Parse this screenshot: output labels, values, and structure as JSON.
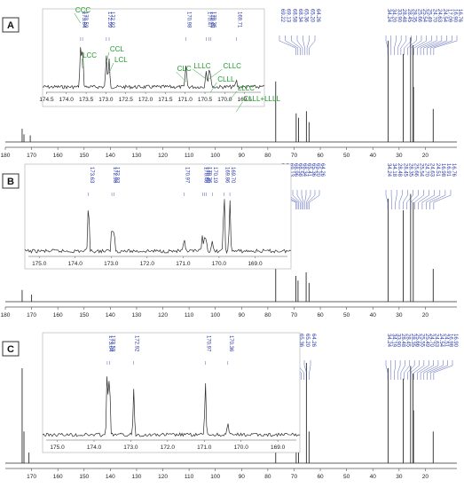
{
  "chart_data": [
    {
      "type": "line",
      "panel_label": "A",
      "xlim": [
        180,
        10
      ],
      "x_ticks": [
        180,
        170,
        160,
        150,
        140,
        130,
        120,
        110,
        100,
        90,
        80,
        70,
        60,
        50,
        40,
        30,
        20
      ],
      "peaks": [
        {
          "ppm": 173.6,
          "height": 0.12
        },
        {
          "ppm": 172.9,
          "height": 0.07
        },
        {
          "ppm": 170.5,
          "height": 0.06
        },
        {
          "ppm": 77.0,
          "height": 0.55
        },
        {
          "ppm": 69.2,
          "height": 0.26
        },
        {
          "ppm": 68.3,
          "height": 0.22
        },
        {
          "ppm": 65.3,
          "height": 0.28
        },
        {
          "ppm": 64.3,
          "height": 0.18
        },
        {
          "ppm": 34.2,
          "height": 0.92
        },
        {
          "ppm": 28.4,
          "height": 0.8
        },
        {
          "ppm": 25.6,
          "height": 0.95
        },
        {
          "ppm": 24.7,
          "height": 0.88
        },
        {
          "ppm": 24.5,
          "height": 0.5
        },
        {
          "ppm": 17.0,
          "height": 0.3
        }
      ],
      "labels_left": [
        "69.22",
        "69.13",
        "68.58",
        "68.34",
        "65.36",
        "65.20",
        "64.26"
      ],
      "labels_right": [
        "34.24",
        "34.20",
        "33.90",
        "28.48",
        "28.45",
        "28.35",
        "25.66",
        "25.54",
        "25.49",
        "24.70",
        "24.63",
        "24.54",
        "17.09",
        "16.90",
        "16.76"
      ],
      "inset": {
        "xlim": [
          174.6,
          169.0
        ],
        "x_ticks": [
          174.5,
          174.0,
          173.5,
          173.0,
          172.5,
          172.0,
          171.5,
          171.0,
          170.5,
          170.0,
          169.5
        ],
        "peaks": [
          {
            "ppm": 173.64,
            "height": 0.72
          },
          {
            "ppm": 173.59,
            "height": 0.68
          },
          {
            "ppm": 172.99,
            "height": 0.55
          },
          {
            "ppm": 172.92,
            "height": 0.5
          },
          {
            "ppm": 170.98,
            "height": 0.4
          },
          {
            "ppm": 170.47,
            "height": 0.32
          },
          {
            "ppm": 170.4,
            "height": 0.28
          },
          {
            "ppm": 170.36,
            "height": 0.22
          },
          {
            "ppm": 169.71,
            "height": 0.12
          }
        ],
        "peak_labels": [
          "173.64",
          "173.59",
          "172.99",
          "172.92",
          "170.98",
          "170.47",
          "170.40",
          "170.36",
          "169.71"
        ],
        "annotations": [
          "CCC",
          "LCC",
          "CCL",
          "LCL",
          "CLC",
          "LLLC",
          "CLLC",
          "CLLL",
          "LLLC",
          "CLLL+LLLL"
        ]
      }
    },
    {
      "type": "line",
      "panel_label": "B",
      "xlim": [
        180,
        10
      ],
      "x_ticks": [
        180,
        170,
        160,
        150,
        140,
        130,
        120,
        110,
        100,
        90,
        80,
        70,
        60,
        50,
        40,
        30,
        20
      ],
      "peaks": [
        {
          "ppm": 173.6,
          "height": 0.1
        },
        {
          "ppm": 170.0,
          "height": 0.06
        },
        {
          "ppm": 77.0,
          "height": 0.55
        },
        {
          "ppm": 69.3,
          "height": 0.22
        },
        {
          "ppm": 68.5,
          "height": 0.18
        },
        {
          "ppm": 65.4,
          "height": 0.25
        },
        {
          "ppm": 64.3,
          "height": 0.16
        },
        {
          "ppm": 34.2,
          "height": 0.88
        },
        {
          "ppm": 28.4,
          "height": 0.78
        },
        {
          "ppm": 25.6,
          "height": 0.92
        },
        {
          "ppm": 24.6,
          "height": 0.85
        },
        {
          "ppm": 17.0,
          "height": 0.28
        }
      ],
      "labels_left": [
        "69.40",
        "69.22",
        "69.13",
        "68.96",
        "68.58",
        "68.34",
        "65.41",
        "65.36",
        "65.20",
        "64.26"
      ],
      "labels_right": [
        "34.24",
        "34.18",
        "28.48",
        "28.45",
        "28.35",
        "25.66",
        "25.54",
        "24.70",
        "24.63",
        "24.51",
        "16.98",
        "16.91",
        "16.76"
      ],
      "inset": {
        "xlim": [
          175.4,
          168.0
        ],
        "x_ticks": [
          175.0,
          174.0,
          173.0,
          172.0,
          171.0,
          170.0,
          169.0
        ],
        "peaks": [
          {
            "ppm": 173.63,
            "height": 0.85
          },
          {
            "ppm": 172.98,
            "height": 0.42
          },
          {
            "ppm": 172.92,
            "height": 0.38
          },
          {
            "ppm": 170.97,
            "height": 0.18
          },
          {
            "ppm": 170.46,
            "height": 0.24
          },
          {
            "ppm": 170.4,
            "height": 0.2
          },
          {
            "ppm": 170.36,
            "height": 0.22
          },
          {
            "ppm": 170.19,
            "height": 0.15
          },
          {
            "ppm": 169.86,
            "height": 0.95
          },
          {
            "ppm": 169.7,
            "height": 0.8
          }
        ],
        "peak_labels": [
          "173.63",
          "172.98",
          "172.92",
          "170.97",
          "170.46",
          "170.40",
          "170.36",
          "170.19",
          "169.86",
          "169.70"
        ]
      }
    },
    {
      "type": "line",
      "panel_label": "C",
      "xlim": [
        180,
        10
      ],
      "x_ticks": [
        170,
        160,
        150,
        140,
        130,
        120,
        110,
        100,
        90,
        80,
        70,
        60,
        50,
        40,
        30,
        20
      ],
      "peaks": [
        {
          "ppm": 173.6,
          "height": 0.9
        },
        {
          "ppm": 172.9,
          "height": 0.3
        },
        {
          "ppm": 171.0,
          "height": 0.1
        },
        {
          "ppm": 77.0,
          "height": 0.55
        },
        {
          "ppm": 69.2,
          "height": 0.22
        },
        {
          "ppm": 68.3,
          "height": 0.18
        },
        {
          "ppm": 65.3,
          "height": 0.95
        },
        {
          "ppm": 64.3,
          "height": 0.3
        },
        {
          "ppm": 34.2,
          "height": 0.9
        },
        {
          "ppm": 28.4,
          "height": 0.8
        },
        {
          "ppm": 25.6,
          "height": 0.92
        },
        {
          "ppm": 24.7,
          "height": 0.85
        },
        {
          "ppm": 24.5,
          "height": 0.5
        },
        {
          "ppm": 17.0,
          "height": 0.3
        }
      ],
      "labels_left": [
        "69.22",
        "68.96",
        "68.34",
        "65.36",
        "65.20",
        "64.26"
      ],
      "labels_right": [
        "34.24",
        "34.19",
        "33.90",
        "28.48",
        "28.45",
        "28.35",
        "25.66",
        "25.55",
        "25.49",
        "24.70",
        "24.63",
        "24.54",
        "24.51",
        "16.98",
        "16.90"
      ],
      "inset": {
        "xlim": [
          175.4,
          168.4
        ],
        "x_ticks": [
          175.0,
          174.0,
          173.0,
          172.0,
          171.0,
          170.0,
          169.0
        ],
        "peaks": [
          {
            "ppm": 173.64,
            "height": 0.85
          },
          {
            "ppm": 173.58,
            "height": 0.8
          },
          {
            "ppm": 172.92,
            "height": 0.58
          },
          {
            "ppm": 170.97,
            "height": 0.65
          },
          {
            "ppm": 170.36,
            "height": 0.15
          }
        ],
        "peak_labels": [
          "173.64",
          "173.58",
          "172.92",
          "170.97",
          "170.36"
        ]
      }
    }
  ],
  "colors": {
    "spectrum": "#2b2b2b",
    "peak_label": "#2a3aa8",
    "annotation": "#1e9a2a",
    "frame": "#555555"
  }
}
